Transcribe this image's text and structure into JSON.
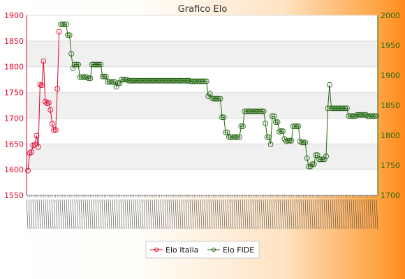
{
  "chart_data": {
    "type": "line",
    "title": "Grafico Elo",
    "left_axis": {
      "ylim": [
        1550,
        1900
      ],
      "ticks": [
        1550,
        1600,
        1650,
        1700,
        1750,
        1800,
        1850,
        1900
      ],
      "color": "#e3002a"
    },
    "right_axis": {
      "ylim": [
        1700,
        2000
      ],
      "ticks": [
        1700,
        1750,
        1800,
        1850,
        1900,
        1950,
        2000
      ],
      "color": "#226611"
    },
    "grid": true,
    "legend_position": "bottom",
    "series": [
      {
        "name": "Elo Italia",
        "axis": "left",
        "color": "#e3002a",
        "x_index_start": 0,
        "values": [
          1598,
          1632,
          1634,
          1647,
          1649,
          1666,
          1644,
          1765,
          1764,
          1811,
          1732,
          1729,
          1730,
          1716,
          1689,
          1677,
          1677,
          1757,
          1868
        ]
      },
      {
        "name": "Elo FIDE",
        "axis": "right",
        "color": "#226611",
        "x_index_start": 19,
        "values": [
          1985,
          1985,
          1985,
          1985,
          1967,
          1967,
          1936,
          1912,
          1918,
          1918,
          1918,
          1897,
          1897,
          1897,
          1897,
          1897,
          1895,
          1895,
          1918,
          1918,
          1918,
          1918,
          1918,
          1918,
          1898,
          1898,
          1898,
          1889,
          1889,
          1889,
          1889,
          1889,
          1881,
          1887,
          1887,
          1893,
          1893,
          1893,
          1893,
          1891,
          1891,
          1891,
          1891,
          1891,
          1891,
          1891,
          1891,
          1891,
          1891,
          1891,
          1891,
          1891,
          1891,
          1891,
          1891,
          1891,
          1891,
          1891,
          1891,
          1891,
          1891,
          1891,
          1891,
          1891,
          1891,
          1891,
          1891,
          1891,
          1891,
          1891,
          1891,
          1891,
          1891,
          1891,
          1891,
          1890,
          1890,
          1890,
          1890,
          1890,
          1890,
          1890,
          1890,
          1890,
          1890,
          1865,
          1869,
          1862,
          1861,
          1861,
          1861,
          1861,
          1861,
          1830,
          1830,
          1805,
          1805,
          1797,
          1797,
          1797,
          1797,
          1797,
          1797,
          1797,
          1815,
          1815,
          1840,
          1840,
          1840,
          1840,
          1840,
          1840,
          1840,
          1840,
          1840,
          1840,
          1840,
          1840,
          1820,
          1797,
          1797,
          1785,
          1832,
          1832,
          1822,
          1822,
          1806,
          1807,
          1807,
          1794,
          1790,
          1791,
          1791,
          1791,
          1815,
          1815,
          1815,
          1815,
          1790,
          1788,
          1788,
          1788,
          1762,
          1748,
          1748,
          1752,
          1752,
          1767,
          1767,
          1760,
          1760,
          1760,
          1760,
          1765,
          1845,
          1884,
          1845,
          1845,
          1845,
          1845,
          1845,
          1845,
          1845,
          1845,
          1845,
          1845,
          1832,
          1832,
          1832,
          1832,
          1832,
          1834,
          1834,
          1834,
          1834,
          1834,
          1834,
          1832,
          1832,
          1832,
          1832,
          1832,
          1832
        ]
      }
    ]
  }
}
